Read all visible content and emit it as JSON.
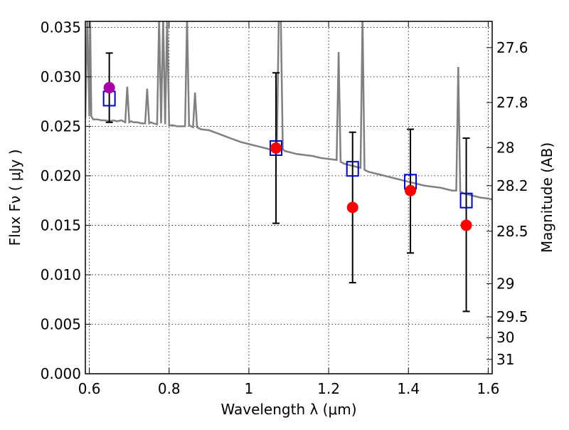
{
  "chart_data": {
    "type": "scatter",
    "title": "",
    "xlabel": "Wavelength  λ (μm)",
    "ylabel": "Flux  Fν  ( μJy )",
    "y2label": "Magnitude (AB)",
    "xlim": [
      0.59,
      1.61
    ],
    "ylim": [
      0.0,
      0.0356
    ],
    "grid": true,
    "x_ticks": [
      0.6,
      0.8,
      1.0,
      1.2,
      1.4,
      1.6
    ],
    "x_tick_labels": [
      "0.6",
      "0.8",
      "1",
      "1.2",
      "1.4",
      "1.6"
    ],
    "y_ticks": [
      0.0,
      0.005,
      0.01,
      0.015,
      0.02,
      0.025,
      0.03,
      0.035
    ],
    "y_tick_labels": [
      "0.000",
      "0.005",
      "0.010",
      "0.015",
      "0.020",
      "0.025",
      "0.030",
      "0.035"
    ],
    "y2_ticks": [
      {
        "label": "27.6",
        "flux": 0.03295
      },
      {
        "label": "27.8",
        "flux": 0.0274
      },
      {
        "label": "28",
        "flux": 0.02285
      },
      {
        "label": "28.2",
        "flux": 0.019
      },
      {
        "label": "28.5",
        "flux": 0.0144
      },
      {
        "label": "29",
        "flux": 0.0091
      },
      {
        "label": "29.5",
        "flux": 0.00575
      },
      {
        "label": "30",
        "flux": 0.00365
      },
      {
        "label": "31",
        "flux": 0.00145
      }
    ],
    "series": [
      {
        "kind": "line",
        "color": "#808080",
        "x": [
          0.59,
          0.595,
          0.6,
          0.602,
          0.605,
          0.61,
          0.62,
          0.63,
          0.64,
          0.65,
          0.66,
          0.67,
          0.68,
          0.69,
          0.695,
          0.7,
          0.705,
          0.71,
          0.72,
          0.73,
          0.74,
          0.745,
          0.75,
          0.755,
          0.76,
          0.77,
          0.775,
          0.78,
          0.785,
          0.79,
          0.795,
          0.8,
          0.81,
          0.82,
          0.83,
          0.84,
          0.845,
          0.85,
          0.855,
          0.86,
          0.865,
          0.87,
          0.875,
          0.88,
          0.9,
          0.92,
          0.94,
          0.96,
          0.98,
          1.0,
          1.02,
          1.04,
          1.06,
          1.07,
          1.075,
          1.08,
          1.085,
          1.09,
          1.1,
          1.12,
          1.14,
          1.16,
          1.18,
          1.2,
          1.22,
          1.225,
          1.23,
          1.235,
          1.24,
          1.26,
          1.27,
          1.28,
          1.285,
          1.29,
          1.295,
          1.3,
          1.32,
          1.34,
          1.36,
          1.38,
          1.4,
          1.42,
          1.44,
          1.46,
          1.48,
          1.5,
          1.51,
          1.52,
          1.525,
          1.53,
          1.54,
          1.56,
          1.58,
          1.6,
          1.61
        ],
        "y": [
          0.0258,
          0.036,
          0.026,
          0.036,
          0.026,
          0.0257,
          0.0257,
          0.0256,
          0.0256,
          0.0255,
          0.0256,
          0.0255,
          0.0256,
          0.0254,
          0.029,
          0.0254,
          0.0255,
          0.0254,
          0.0254,
          0.0253,
          0.0253,
          0.0288,
          0.0253,
          0.0254,
          0.0253,
          0.0252,
          0.036,
          0.0253,
          0.036,
          0.0252,
          0.036,
          0.0251,
          0.0251,
          0.025,
          0.025,
          0.025,
          0.036,
          0.0251,
          0.025,
          0.0249,
          0.0284,
          0.0249,
          0.0248,
          0.0247,
          0.0246,
          0.0243,
          0.024,
          0.0237,
          0.0234,
          0.0232,
          0.023,
          0.0228,
          0.0226,
          0.0226,
          0.036,
          0.036,
          0.0227,
          0.0225,
          0.0224,
          0.0222,
          0.0221,
          0.022,
          0.0218,
          0.0217,
          0.0216,
          0.0325,
          0.0214,
          0.0213,
          0.0212,
          0.021,
          0.0209,
          0.0208,
          0.036,
          0.0206,
          0.0205,
          0.0204,
          0.0202,
          0.02,
          0.0198,
          0.0196,
          0.0194,
          0.0192,
          0.019,
          0.0189,
          0.0188,
          0.0186,
          0.0185,
          0.0185,
          0.031,
          0.0184,
          0.0182,
          0.018,
          0.0178,
          0.0177,
          0.0176
        ]
      },
      {
        "kind": "observed",
        "x": [
          0.65,
          1.068,
          1.26,
          1.405,
          1.545
        ],
        "y": [
          0.0289,
          0.0228,
          0.0168,
          0.0185,
          0.015
        ],
        "err_low": [
          0.0254,
          0.0152,
          0.0092,
          0.0122,
          0.0063
        ],
        "err_high": [
          0.0324,
          0.0304,
          0.0244,
          0.0247,
          0.0238
        ],
        "colors": [
          "#aa00aa",
          "#ff0000",
          "#ff0000",
          "#ff0000",
          "#ff0000"
        ]
      },
      {
        "kind": "model",
        "color": "#0000cc",
        "x": [
          0.65,
          1.068,
          1.26,
          1.405,
          1.545
        ],
        "y": [
          0.0278,
          0.0228,
          0.0207,
          0.0194,
          0.0175
        ]
      }
    ]
  }
}
